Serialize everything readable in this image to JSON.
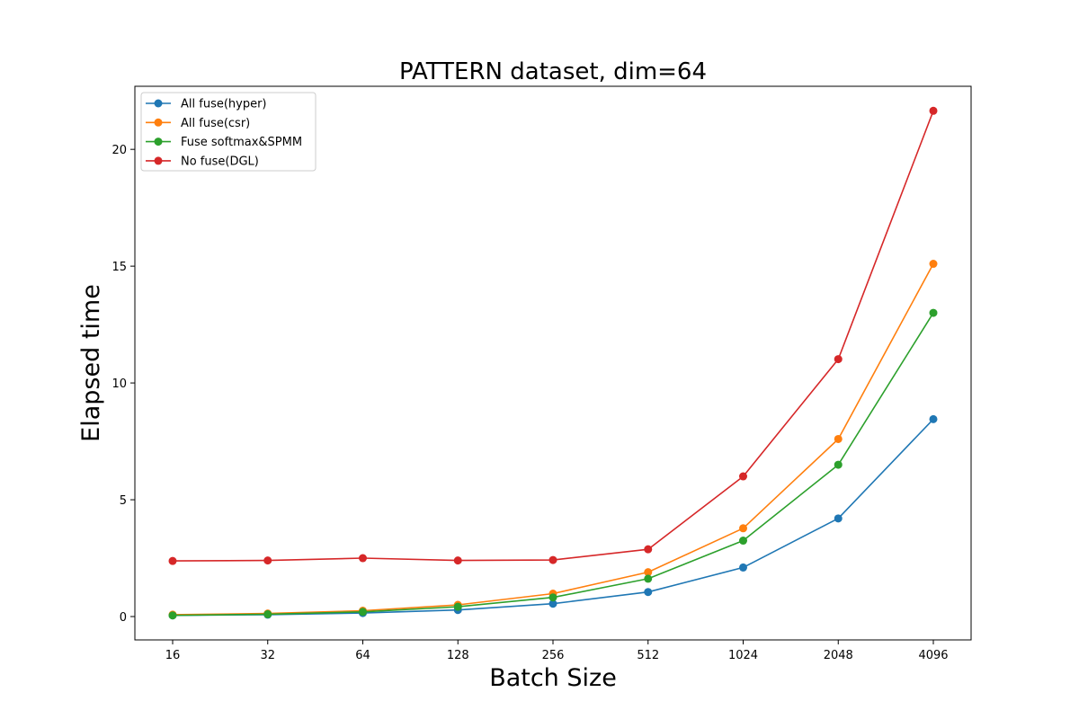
{
  "chart_data": {
    "type": "line",
    "title": "PATTERN dataset, dim=64",
    "xlabel": "Batch Size",
    "ylabel": "Elapsed time",
    "categories": [
      "16",
      "32",
      "64",
      "128",
      "256",
      "512",
      "1024",
      "2048",
      "4096"
    ],
    "ylim": [
      -1.0,
      22.7
    ],
    "yticks": [
      0,
      5,
      10,
      15,
      20
    ],
    "grid": false,
    "legend_position": "top-left",
    "markers": "circle",
    "series": [
      {
        "name": "All fuse(hyper)",
        "color": "#1f77b4",
        "values": [
          0.05,
          0.08,
          0.15,
          0.28,
          0.55,
          1.05,
          2.1,
          4.2,
          8.45
        ]
      },
      {
        "name": "All fuse(csr)",
        "color": "#ff7f0e",
        "values": [
          0.08,
          0.13,
          0.25,
          0.5,
          0.98,
          1.9,
          3.78,
          7.6,
          15.1
        ]
      },
      {
        "name": "Fuse softmax&SPMM",
        "color": "#2ca02c",
        "values": [
          0.05,
          0.1,
          0.2,
          0.42,
          0.82,
          1.62,
          3.25,
          6.5,
          13.0
        ]
      },
      {
        "name": "No fuse(DGL)",
        "color": "#d62728",
        "values": [
          2.38,
          2.4,
          2.5,
          2.4,
          2.42,
          2.88,
          6.0,
          11.02,
          21.65
        ]
      }
    ]
  }
}
